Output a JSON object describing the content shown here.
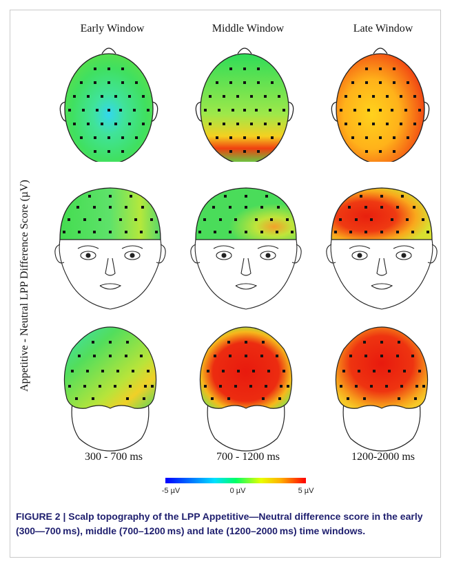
{
  "figure": {
    "column_titles": [
      "Early Window",
      "Middle Window",
      "Late Window"
    ],
    "y_axis_label": "Appetitive - Neutral LPP Difference Score (µV)",
    "time_labels": [
      "300 - 700 ms",
      "700 - 1200 ms",
      "1200-2000 ms"
    ],
    "colorbar": {
      "min_label": "-5 µV",
      "mid_label": "0 µV",
      "max_label": "5 µV",
      "colors": [
        "#0000ff",
        "#00e0ff",
        "#00ff66",
        "#e8ff00",
        "#ffb000",
        "#ff0000"
      ]
    },
    "views": [
      "top",
      "front",
      "back"
    ],
    "maps": {
      "early": {
        "top": "green-cyan",
        "front": "green",
        "back": "green-yellow"
      },
      "middle": {
        "top": "green-orange-posterior",
        "front": "green-orange",
        "back": "red"
      },
      "late": {
        "top": "orange-red",
        "front": "red-orange",
        "back": "red"
      }
    }
  },
  "caption": {
    "label": "FIGURE 2 | ",
    "text": "Scalp topography of the LPP Appetitive—Neutral difference score in the early (300—700 ms), middle (700–1200 ms) and late (1200–2000 ms) time windows."
  }
}
